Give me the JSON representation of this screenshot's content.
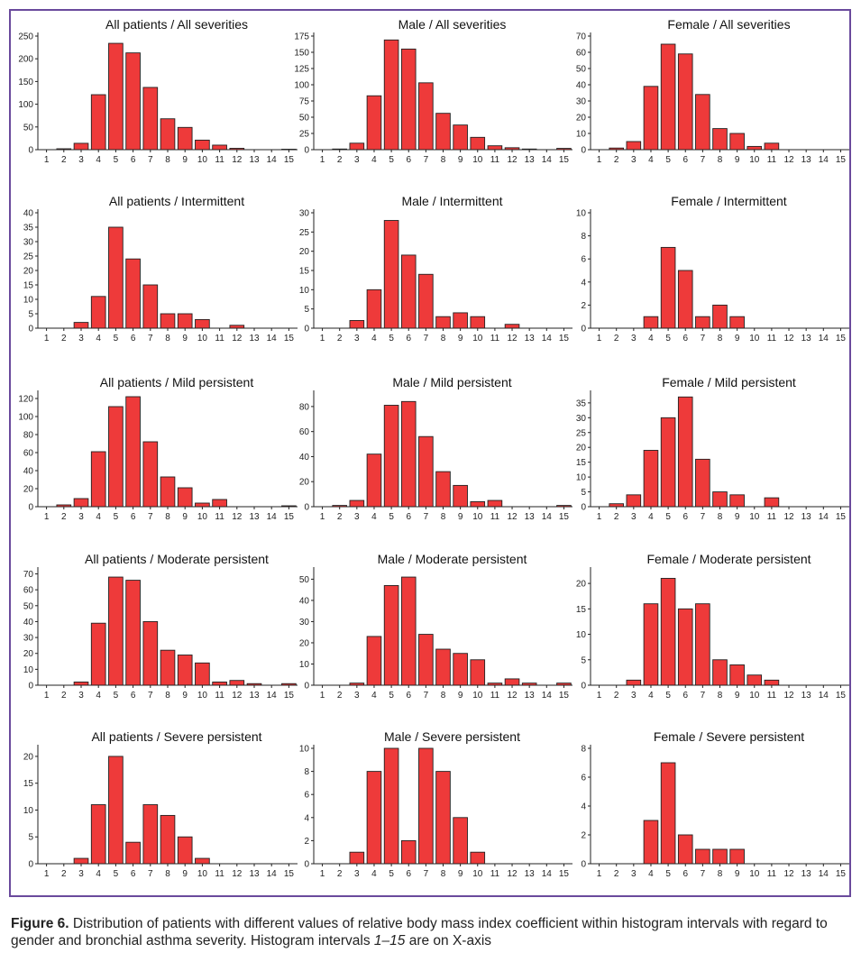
{
  "colors": {
    "bar": "#ee3a3a",
    "bar_edge": "#222222",
    "frame": "#6a4a9c"
  },
  "caption": {
    "label": "Figure 6.",
    "text": " Distribution of patients with different values of relative body mass index coefficient within histogram intervals with regard to gender and bronchial asthma severity. Histogram intervals ",
    "range": "1–15",
    "tail": " are on X-axis"
  },
  "chart_data": [
    {
      "type": "bar",
      "title": "All patients / All severities",
      "categories": [
        "1",
        "2",
        "3",
        "4",
        "5",
        "6",
        "7",
        "8",
        "9",
        "10",
        "11",
        "12",
        "13",
        "14",
        "15"
      ],
      "values": [
        0,
        2,
        14,
        121,
        234,
        213,
        137,
        68,
        49,
        21,
        10,
        3,
        0,
        0,
        1
      ],
      "ylim": [
        0,
        250
      ],
      "yticks": [
        0,
        50,
        100,
        150,
        200,
        250
      ]
    },
    {
      "type": "bar",
      "title": "Male / All severities",
      "categories": [
        "1",
        "2",
        "3",
        "4",
        "5",
        "6",
        "7",
        "8",
        "9",
        "10",
        "11",
        "12",
        "13",
        "14",
        "15"
      ],
      "values": [
        0,
        1,
        10,
        83,
        169,
        155,
        103,
        56,
        38,
        19,
        6,
        3,
        1,
        0,
        2
      ],
      "ylim": [
        0,
        175
      ],
      "yticks": [
        0,
        25,
        50,
        75,
        100,
        125,
        150,
        175
      ]
    },
    {
      "type": "bar",
      "title": "Female / All severities",
      "categories": [
        "1",
        "2",
        "3",
        "4",
        "5",
        "6",
        "7",
        "8",
        "9",
        "10",
        "11",
        "12",
        "13",
        "14",
        "15"
      ],
      "values": [
        0,
        1,
        5,
        39,
        65,
        59,
        34,
        13,
        10,
        2,
        4,
        0,
        0,
        0,
        0
      ],
      "ylim": [
        0,
        70
      ],
      "yticks": [
        0,
        10,
        20,
        30,
        40,
        50,
        60,
        70
      ]
    },
    {
      "type": "bar",
      "title": "All patients / Intermittent",
      "categories": [
        "1",
        "2",
        "3",
        "4",
        "5",
        "6",
        "7",
        "8",
        "9",
        "10",
        "11",
        "12",
        "13",
        "14",
        "15"
      ],
      "values": [
        0,
        0,
        2,
        11,
        35,
        24,
        15,
        5,
        5,
        3,
        0,
        1,
        0,
        0,
        0
      ],
      "ylim": [
        0,
        40
      ],
      "yticks": [
        0,
        5,
        10,
        15,
        20,
        25,
        30,
        35,
        40
      ]
    },
    {
      "type": "bar",
      "title": "Male / Intermittent",
      "categories": [
        "1",
        "2",
        "3",
        "4",
        "5",
        "6",
        "7",
        "8",
        "9",
        "10",
        "11",
        "12",
        "13",
        "14",
        "15"
      ],
      "values": [
        0,
        0,
        2,
        10,
        28,
        19,
        14,
        3,
        4,
        3,
        0,
        1,
        0,
        0,
        0
      ],
      "ylim": [
        0,
        30
      ],
      "yticks": [
        0,
        5,
        10,
        15,
        20,
        25,
        30
      ]
    },
    {
      "type": "bar",
      "title": "Female / Intermittent",
      "categories": [
        "1",
        "2",
        "3",
        "4",
        "5",
        "6",
        "7",
        "8",
        "9",
        "10",
        "11",
        "12",
        "13",
        "14",
        "15"
      ],
      "values": [
        0,
        0,
        0,
        1,
        7,
        5,
        1,
        2,
        1,
        0,
        0,
        0,
        0,
        0,
        0
      ],
      "ylim": [
        0,
        10
      ],
      "yticks": [
        0,
        2,
        4,
        6,
        8,
        10
      ]
    },
    {
      "type": "bar",
      "title": "All patients / Mild persistent",
      "categories": [
        "1",
        "2",
        "3",
        "4",
        "5",
        "6",
        "7",
        "8",
        "9",
        "10",
        "11",
        "12",
        "13",
        "14",
        "15"
      ],
      "values": [
        0,
        2,
        9,
        61,
        111,
        122,
        72,
        33,
        21,
        4,
        8,
        0,
        0,
        0,
        1
      ],
      "ylim": [
        0,
        125
      ],
      "yticks": [
        0,
        20,
        40,
        60,
        80,
        100,
        120
      ]
    },
    {
      "type": "bar",
      "title": "Male / Mild persistent",
      "categories": [
        "1",
        "2",
        "3",
        "4",
        "5",
        "6",
        "7",
        "8",
        "9",
        "10",
        "11",
        "12",
        "13",
        "14",
        "15"
      ],
      "values": [
        0,
        1,
        5,
        42,
        81,
        84,
        56,
        28,
        17,
        4,
        5,
        0,
        0,
        0,
        1
      ],
      "ylim": [
        0,
        90
      ],
      "yticks": [
        0,
        20,
        40,
        60,
        80
      ]
    },
    {
      "type": "bar",
      "title": "Female / Mild persistent",
      "categories": [
        "1",
        "2",
        "3",
        "4",
        "5",
        "6",
        "7",
        "8",
        "9",
        "10",
        "11",
        "12",
        "13",
        "14",
        "15"
      ],
      "values": [
        0,
        1,
        4,
        19,
        30,
        37,
        16,
        5,
        4,
        0,
        3,
        0,
        0,
        0,
        0
      ],
      "ylim": [
        0,
        38
      ],
      "yticks": [
        0,
        5,
        10,
        15,
        20,
        25,
        30,
        35
      ]
    },
    {
      "type": "bar",
      "title": "All patients / Moderate persistent",
      "categories": [
        "1",
        "2",
        "3",
        "4",
        "5",
        "6",
        "7",
        "8",
        "9",
        "10",
        "11",
        "12",
        "13",
        "14",
        "15"
      ],
      "values": [
        0,
        0,
        2,
        39,
        68,
        66,
        40,
        22,
        19,
        14,
        2,
        3,
        1,
        0,
        1
      ],
      "ylim": [
        0,
        72
      ],
      "yticks": [
        0,
        10,
        20,
        30,
        40,
        50,
        60,
        70
      ]
    },
    {
      "type": "bar",
      "title": "Male / Moderate persistent",
      "categories": [
        "1",
        "2",
        "3",
        "4",
        "5",
        "6",
        "7",
        "8",
        "9",
        "10",
        "11",
        "12",
        "13",
        "14",
        "15"
      ],
      "values": [
        0,
        0,
        1,
        23,
        47,
        51,
        24,
        17,
        15,
        12,
        1,
        3,
        1,
        0,
        1
      ],
      "ylim": [
        0,
        54
      ],
      "yticks": [
        0,
        10,
        20,
        30,
        40,
        50
      ]
    },
    {
      "type": "bar",
      "title": "Female / Moderate persistent",
      "categories": [
        "1",
        "2",
        "3",
        "4",
        "5",
        "6",
        "7",
        "8",
        "9",
        "10",
        "11",
        "12",
        "13",
        "14",
        "15"
      ],
      "values": [
        0,
        0,
        1,
        16,
        21,
        15,
        16,
        5,
        4,
        2,
        1,
        0,
        0,
        0,
        0
      ],
      "ylim": [
        0,
        22.5
      ],
      "yticks": [
        0,
        5,
        10,
        15,
        20
      ]
    },
    {
      "type": "bar",
      "title": "All patients / Severe persistent",
      "categories": [
        "1",
        "2",
        "3",
        "4",
        "5",
        "6",
        "7",
        "8",
        "9",
        "10",
        "11",
        "12",
        "13",
        "14",
        "15"
      ],
      "values": [
        0,
        0,
        1,
        11,
        20,
        4,
        11,
        9,
        5,
        1,
        0,
        0,
        0,
        0,
        0
      ],
      "ylim": [
        0,
        21.5
      ],
      "yticks": [
        0,
        5,
        10,
        15,
        20
      ]
    },
    {
      "type": "bar",
      "title": "Male / Severe persistent",
      "categories": [
        "1",
        "2",
        "3",
        "4",
        "5",
        "6",
        "7",
        "8",
        "9",
        "10",
        "11",
        "12",
        "13",
        "14",
        "15"
      ],
      "values": [
        0,
        0,
        1,
        8,
        10,
        2,
        10,
        8,
        4,
        1,
        0,
        0,
        0,
        0,
        0
      ],
      "ylim": [
        0,
        10
      ],
      "yticks": [
        0,
        2,
        4,
        6,
        8,
        10
      ]
    },
    {
      "type": "bar",
      "title": "Female / Severe persistent",
      "categories": [
        "1",
        "2",
        "3",
        "4",
        "5",
        "6",
        "7",
        "8",
        "9",
        "10",
        "11",
        "12",
        "13",
        "14",
        "15"
      ],
      "values": [
        0,
        0,
        0,
        3,
        7,
        2,
        1,
        1,
        1,
        0,
        0,
        0,
        0,
        0,
        0
      ],
      "ylim": [
        0,
        8
      ],
      "yticks": [
        0,
        2,
        4,
        6,
        8
      ]
    }
  ]
}
